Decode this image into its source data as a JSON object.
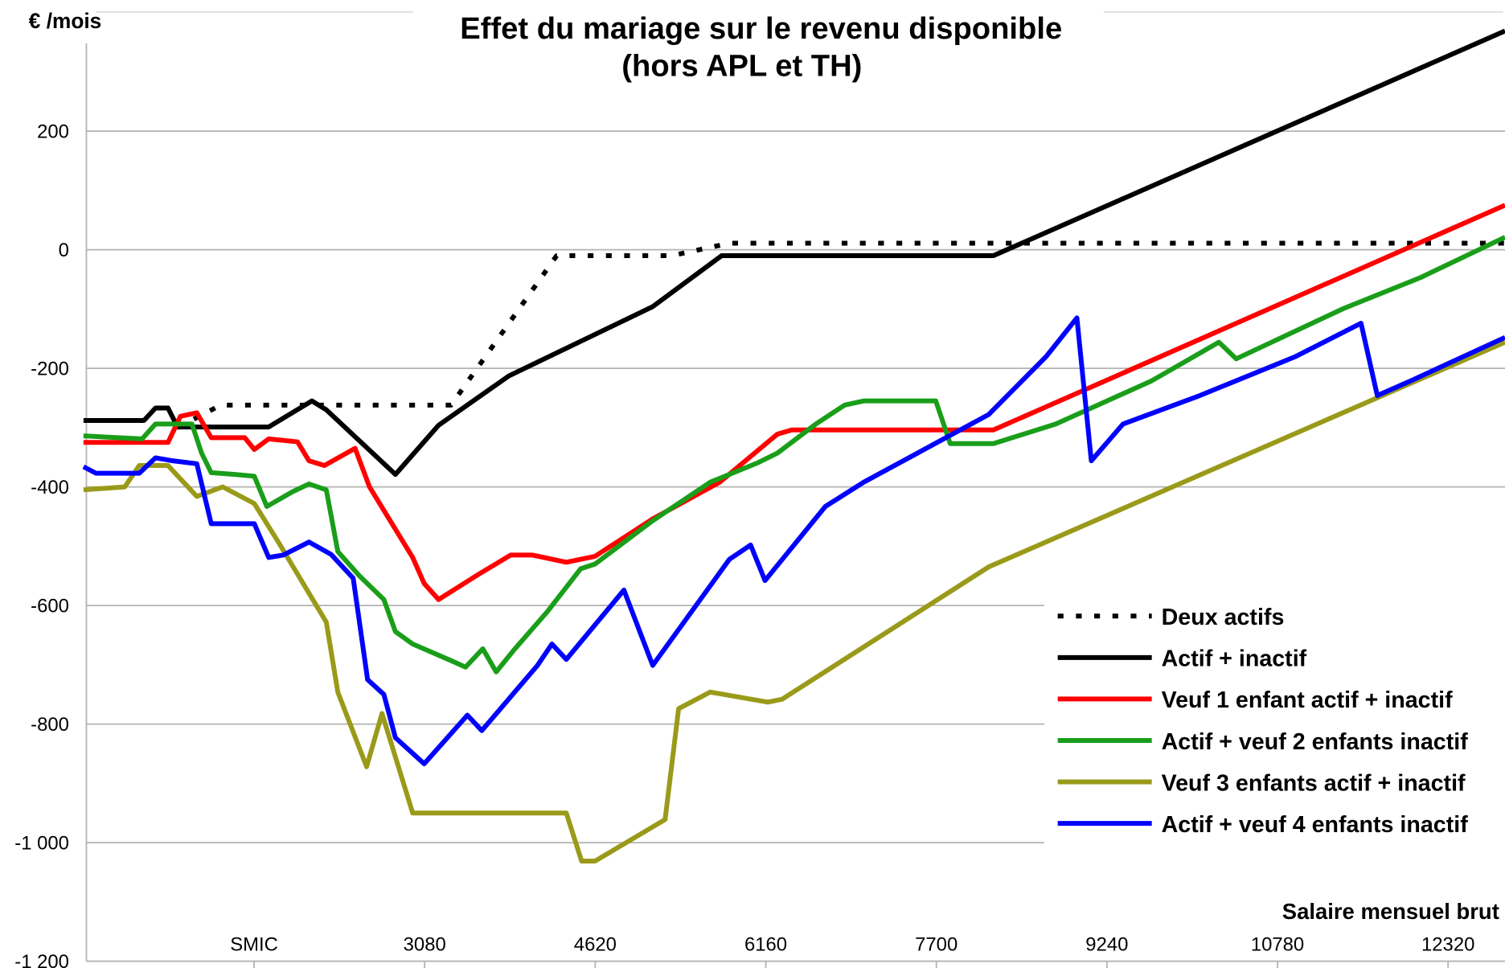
{
  "chart_data": {
    "type": "line",
    "title": "Effet du mariage sur le revenu disponible",
    "subtitle": "(hors APL et TH)",
    "ylabel": "€ /mois",
    "xlabel": "Salaire mensuel brut",
    "xlim": [
      0,
      12834
    ],
    "ylim": [
      -1200,
      400
    ],
    "xticks": [
      {
        "value": 1540,
        "label": "SMIC"
      },
      3080,
      4620,
      6160,
      7700,
      9240,
      10780,
      12320
    ],
    "yticks": [
      {
        "value": -1200,
        "label": "-1 200"
      },
      {
        "value": -1000,
        "label": "-1 000"
      },
      -800,
      -600,
      -400,
      -200,
      0,
      200
    ],
    "grid": true,
    "legend": "lower right",
    "series": [
      {
        "name": "Deux actifs",
        "color": "#000000",
        "dash": "dotted",
        "x": [
          850,
          1239,
          3319,
          4272,
          5312,
          5832,
          12834
        ],
        "values": [
          -300,
          -262,
          -262,
          -10,
          -10,
          11,
          11
        ]
      },
      {
        "name": "Actif + inactif",
        "color": "#000000",
        "dash": "solid",
        "x": [
          0,
          546,
          650,
          763,
          849,
          1672,
          2062,
          2192,
          2816,
          3206,
          3839,
          5139,
          5762,
          8215,
          12834
        ],
        "values": [
          -288,
          -288,
          -267,
          -267,
          -299,
          -299,
          -255,
          -270,
          -379,
          -296,
          -213,
          -96,
          -10,
          -10,
          369
        ]
      },
      {
        "name": "Veuf 1 enfant actif + inactif",
        "color": "#ff0000",
        "dash": "solid",
        "x": [
          0,
          763,
          875,
          1023,
          1153,
          1456,
          1542,
          1672,
          1932,
          2036,
          2175,
          2452,
          2582,
          2972,
          3076,
          3206,
          3579,
          3856,
          4055,
          4359,
          4619,
          5139,
          5745,
          6265,
          6395,
          8215,
          12834
        ],
        "values": [
          -325,
          -325,
          -281,
          -275,
          -317,
          -317,
          -337,
          -319,
          -324,
          -356,
          -364,
          -335,
          -400,
          -519,
          -563,
          -590,
          -546,
          -515,
          -515,
          -527,
          -517,
          -454,
          -392,
          -311,
          -304,
          -304,
          75
        ]
      },
      {
        "name": "Actif + veuf 2 enfants inactif",
        "color": "#1a9e1a",
        "dash": "solid",
        "x": [
          0,
          529,
          650,
          979,
          1066,
          1153,
          1369,
          1542,
          1655,
          1889,
          2036,
          2192,
          2296,
          2496,
          2712,
          2816,
          2972,
          3319,
          3449,
          3605,
          3726,
          3882,
          4185,
          4489,
          4619,
          5139,
          5659,
          6092,
          6265,
          6612,
          6872,
          7045,
          7695,
          7825,
          8215,
          8778,
          9645,
          10251,
          10407,
          11378,
          12071,
          12834
        ],
        "values": [
          -314,
          -319,
          -294,
          -294,
          -343,
          -376,
          -379,
          -382,
          -433,
          -408,
          -395,
          -405,
          -509,
          -551,
          -590,
          -644,
          -665,
          -693,
          -704,
          -673,
          -712,
          -676,
          -611,
          -538,
          -530,
          -457,
          -392,
          -359,
          -343,
          -294,
          -262,
          -255,
          -255,
          -327,
          -327,
          -294,
          -221,
          -156,
          -184,
          -99,
          -47,
          21
        ]
      },
      {
        "name": "Veuf 3 enfants actif + inactif",
        "color": "#9a9a1a",
        "dash": "solid",
        "x": [
          0,
          373,
          503,
          763,
          1023,
          1257,
          1542,
          1759,
          2192,
          2296,
          2556,
          2695,
          2972,
          4359,
          4497,
          4619,
          5251,
          5373,
          5659,
          6178,
          6308,
          8172,
          12834
        ],
        "values": [
          -405,
          -400,
          -364,
          -364,
          -416,
          -400,
          -428,
          -493,
          -628,
          -746,
          -872,
          -782,
          -950,
          -950,
          -1031,
          -1031,
          -961,
          -774,
          -746,
          -763,
          -758,
          -535,
          -156
        ]
      },
      {
        "name": "Actif + veuf 4 enfants inactif",
        "color": "#0000ff",
        "dash": "solid",
        "x": [
          0,
          113,
          503,
          650,
          806,
          1023,
          1153,
          1542,
          1672,
          1802,
          2036,
          2236,
          2435,
          2565,
          2712,
          2816,
          3076,
          3466,
          3596,
          4099,
          4229,
          4359,
          4879,
          5139,
          5832,
          6023,
          6153,
          6698,
          7045,
          8172,
          8692,
          8969,
          9099,
          9385,
          10078,
          10945,
          11534,
          11681,
          11984,
          12834
        ],
        "values": [
          -366,
          -377,
          -377,
          -351,
          -356,
          -361,
          -462,
          -462,
          -519,
          -515,
          -493,
          -514,
          -554,
          -725,
          -750,
          -823,
          -867,
          -785,
          -811,
          -701,
          -665,
          -691,
          -574,
          -701,
          -522,
          -498,
          -558,
          -433,
          -392,
          -278,
          -180,
          -115,
          -356,
          -294,
          -246,
          -180,
          -124,
          -246,
          -221,
          -148
        ]
      }
    ]
  }
}
